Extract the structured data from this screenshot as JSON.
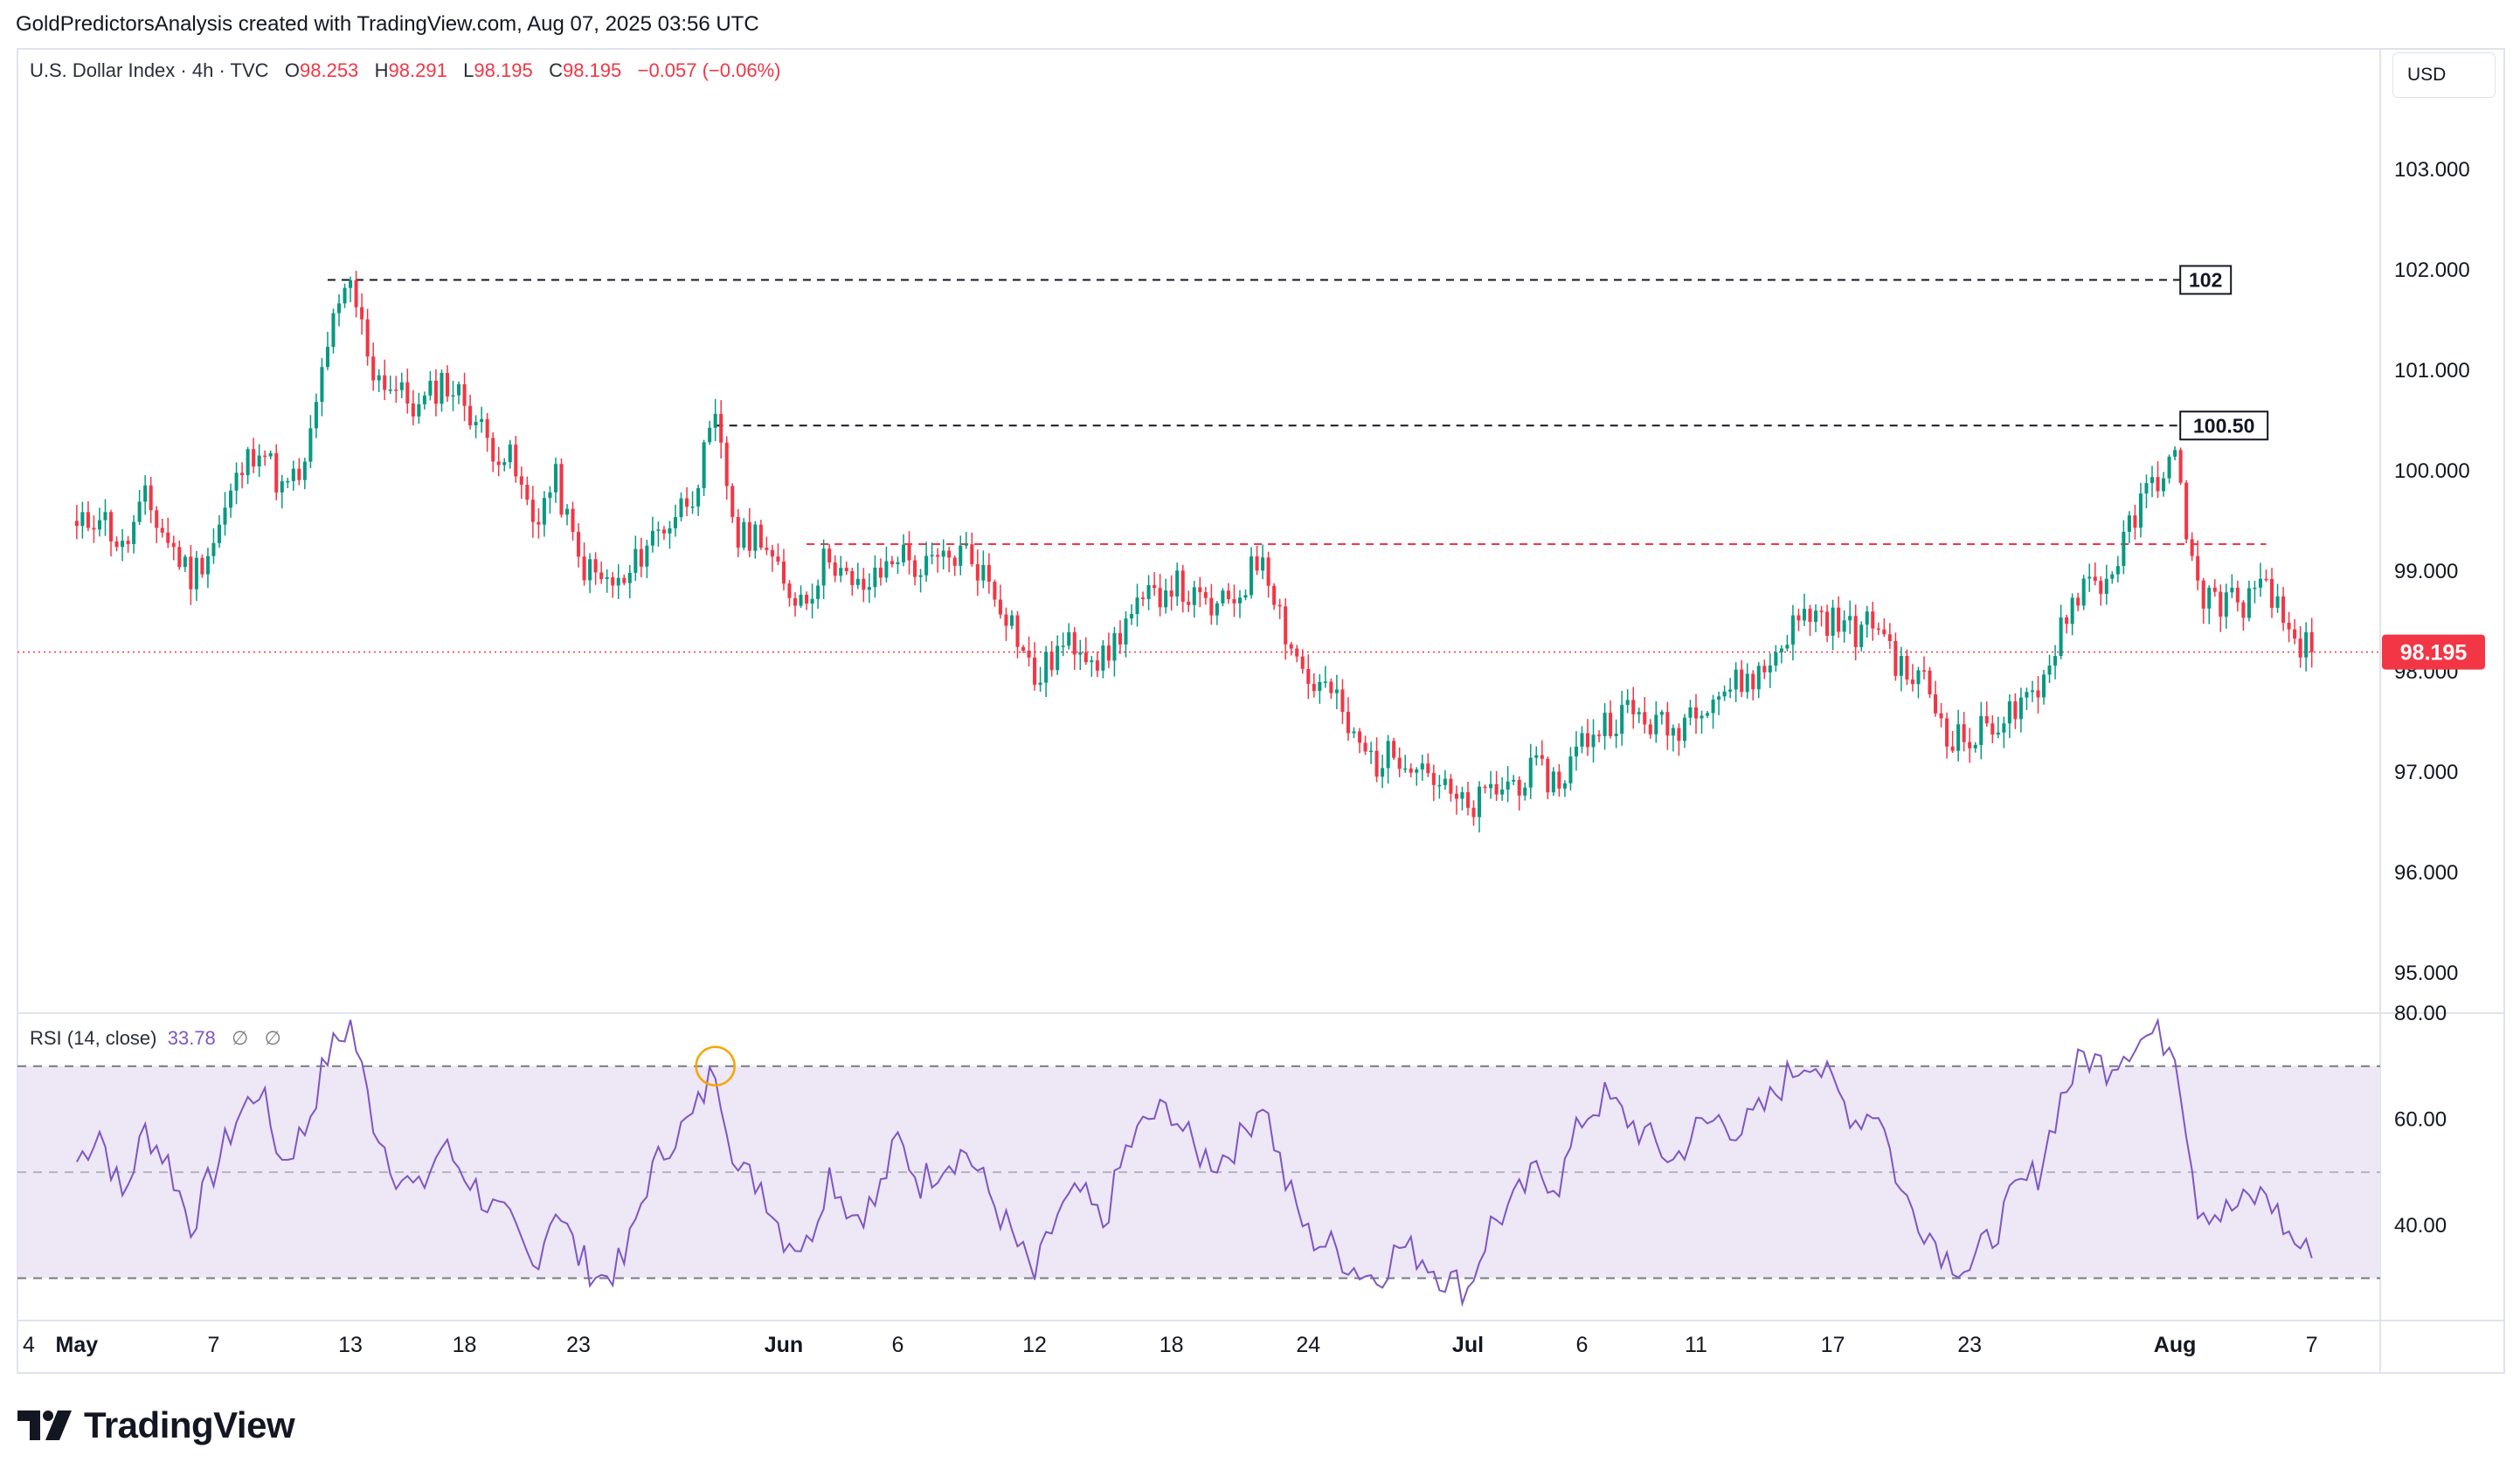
{
  "attribution": "GoldPredictorsAnalysis created with TradingView.com, Aug 07, 2025 03:56 UTC",
  "legend": {
    "symbol": "U.S. Dollar Index",
    "interval": "4h",
    "source": "TVC",
    "open_label": "O",
    "open": "98.253",
    "high_label": "H",
    "high": "98.291",
    "low_label": "L",
    "low": "98.195",
    "close_label": "C",
    "close": "98.195",
    "change": "−0.057 (−0.06%)"
  },
  "rsi_legend": {
    "label": "RSI (14, close)",
    "value": "33.78",
    "na1": "∅",
    "na2": "∅"
  },
  "currency_button": "USD",
  "brand": "TradingView",
  "colors": {
    "up": "#089981",
    "down": "#f23645",
    "rsi_line": "#7e57c2",
    "rsi_band": "#ede7f6",
    "price_line": "#f23645",
    "level_line": "#131722"
  },
  "chart_data": [
    {
      "type": "candlestick",
      "title": "U.S. Dollar Index · 4h · TVC",
      "y_axis_ticks": [
        "103.000",
        "102.000",
        "101.000",
        "100.000",
        "99.000",
        "98.000",
        "97.000",
        "96.000",
        "95.000"
      ],
      "ylim": [
        94.6,
        104.2
      ],
      "x_axis_ticks": [
        "4",
        "May",
        "7",
        "13",
        "18",
        "23",
        "Jun",
        "6",
        "12",
        "18",
        "24",
        "Jul",
        "6",
        "11",
        "17",
        "23",
        "Aug",
        "7"
      ],
      "last_price": "98.195",
      "annotations": [
        {
          "label": "102",
          "value": 101.9,
          "style": "dashed",
          "color": "#131722",
          "from": "May 12",
          "to": "Aug 2"
        },
        {
          "label": "100.50",
          "value": 100.45,
          "style": "dashed",
          "color": "#131722",
          "from": "May 29",
          "to": "Aug 2"
        },
        {
          "label": "",
          "value": 99.27,
          "style": "dashed",
          "color": "#f23645",
          "from": "Jun 2",
          "to": "Aug 5"
        }
      ],
      "price_path": [
        [
          "May 1",
          99.4
        ],
        [
          "May 2",
          99.6
        ],
        [
          "May 3",
          99.2
        ],
        [
          "May 4",
          99.7
        ],
        [
          "May 5",
          99.3
        ],
        [
          "May 6",
          98.95
        ],
        [
          "May 7",
          99.3
        ],
        [
          "May 8",
          99.9
        ],
        [
          "May 9",
          100.3
        ],
        [
          "May 10",
          99.8
        ],
        [
          "May 11",
          100.0
        ],
        [
          "May 12",
          101.3
        ],
        [
          "May 13",
          101.85
        ],
        [
          "May 14",
          101.0
        ],
        [
          "May 15",
          100.8
        ],
        [
          "May 16",
          100.6
        ],
        [
          "May 17",
          100.9
        ],
        [
          "May 18",
          100.7
        ],
        [
          "May 19",
          100.3
        ],
        [
          "May 20",
          100.1
        ],
        [
          "May 21",
          99.5
        ],
        [
          "May 22",
          99.9
        ],
        [
          "May 23",
          99.1
        ],
        [
          "May 24",
          98.9
        ],
        [
          "May 25",
          98.85
        ],
        [
          "May 26",
          99.3
        ],
        [
          "May 27",
          99.5
        ],
        [
          "May 28",
          99.8
        ],
        [
          "May 29",
          100.45
        ],
        [
          "May 30",
          99.3
        ],
        [
          "May 31",
          99.4
        ],
        [
          "Jun 1",
          98.8
        ],
        [
          "Jun 2",
          98.75
        ],
        [
          "Jun 3",
          99.2
        ],
        [
          "Jun 4",
          98.8
        ],
        [
          "Jun 5",
          98.9
        ],
        [
          "Jun 6",
          99.2
        ],
        [
          "Jun 7",
          99.0
        ],
        [
          "Jun 8",
          99.1
        ],
        [
          "Jun 9",
          99.2
        ],
        [
          "Jun 10",
          98.9
        ],
        [
          "Jun 11",
          98.5
        ],
        [
          "Jun 12",
          97.9
        ],
        [
          "Jun 13",
          98.2
        ],
        [
          "Jun 14",
          98.3
        ],
        [
          "Jun 15",
          98.1
        ],
        [
          "Jun 16",
          98.5
        ],
        [
          "Jun 17",
          98.7
        ],
        [
          "Jun 18",
          98.9
        ],
        [
          "Jun 19",
          98.7
        ],
        [
          "Jun 20",
          98.6
        ],
        [
          "Jun 21",
          98.8
        ],
        [
          "Jun 22",
          99.2
        ],
        [
          "Jun 23",
          98.4
        ],
        [
          "Jun 24",
          97.9
        ],
        [
          "Jun 25",
          97.8
        ],
        [
          "Jun 26",
          97.3
        ],
        [
          "Jun 27",
          97.1
        ],
        [
          "Jun 28",
          97.2
        ],
        [
          "Jun 29",
          97.1
        ],
        [
          "Jun 30",
          96.8
        ],
        [
          "Jul 1",
          96.6
        ],
        [
          "Jul 2",
          96.8
        ],
        [
          "Jul 3",
          96.9
        ],
        [
          "Jul 4",
          97.0
        ],
        [
          "Jul 5",
          96.9
        ],
        [
          "Jul 6",
          97.3
        ],
        [
          "Jul 7",
          97.5
        ],
        [
          "Jul 8",
          97.6
        ],
        [
          "Jul 9",
          97.5
        ],
        [
          "Jul 10",
          97.4
        ],
        [
          "Jul 11",
          97.7
        ],
        [
          "Jul 12",
          97.8
        ],
        [
          "Jul 13",
          97.9
        ],
        [
          "Jul 14",
          98.0
        ],
        [
          "Jul 15",
          98.4
        ],
        [
          "Jul 16",
          98.6
        ],
        [
          "Jul 17",
          98.5
        ],
        [
          "Jul 18",
          98.4
        ],
        [
          "Jul 19",
          98.5
        ],
        [
          "Jul 20",
          98.0
        ],
        [
          "Jul 21",
          97.9
        ],
        [
          "Jul 22",
          97.4
        ],
        [
          "Jul 23",
          97.3
        ],
        [
          "Jul 24",
          97.5
        ],
        [
          "Jul 25",
          97.6
        ],
        [
          "Jul 26",
          97.7
        ],
        [
          "Jul 27",
          98.5
        ],
        [
          "Jul 28",
          98.9
        ],
        [
          "Jul 29",
          98.9
        ],
        [
          "Jul 30",
          99.4
        ],
        [
          "Jul 31",
          99.9
        ],
        [
          "Aug 1",
          100.1
        ],
        [
          "Aug 2",
          98.8
        ],
        [
          "Aug 3",
          98.7
        ],
        [
          "Aug 4",
          98.7
        ],
        [
          "Aug 5",
          98.8
        ],
        [
          "Aug 6",
          98.4
        ],
        [
          "Aug 7",
          98.2
        ]
      ]
    },
    {
      "type": "line",
      "title": "RSI (14, close)",
      "y_axis_ticks": [
        "80.00",
        "60.00",
        "40.00"
      ],
      "ylim": [
        22,
        80
      ],
      "bands": {
        "upper": 70,
        "middle": 50,
        "lower": 30
      },
      "series": [
        {
          "name": "RSI",
          "values": [
            [
              "May 1",
              52
            ],
            [
              "May 2",
              58
            ],
            [
              "May 3",
              45
            ],
            [
              "May 4",
              58
            ],
            [
              "May 5",
              52
            ],
            [
              "May 6",
              40
            ],
            [
              "May 7",
              50
            ],
            [
              "May 8",
              60
            ],
            [
              "May 9",
              66
            ],
            [
              "May 10",
              52
            ],
            [
              "May 11",
              58
            ],
            [
              "May 12",
              72
            ],
            [
              "May 13",
              78
            ],
            [
              "May 14",
              60
            ],
            [
              "May 15",
              50
            ],
            [
              "May 16",
              46
            ],
            [
              "May 17",
              55
            ],
            [
              "May 18",
              50
            ],
            [
              "May 19",
              44
            ],
            [
              "May 20",
              40
            ],
            [
              "May 21",
              32
            ],
            [
              "May 22",
              44
            ],
            [
              "May 23",
              34
            ],
            [
              "May 24",
              30
            ],
            [
              "May 25",
              33
            ],
            [
              "May 26",
              48
            ],
            [
              "May 27",
              56
            ],
            [
              "May 28",
              60
            ],
            [
              "May 29",
              70
            ],
            [
              "May 30",
              50
            ],
            [
              "May 31",
              48
            ],
            [
              "Jun 1",
              38
            ],
            [
              "Jun 2",
              36
            ],
            [
              "Jun 3",
              50
            ],
            [
              "Jun 4",
              42
            ],
            [
              "Jun 5",
              44
            ],
            [
              "Jun 6",
              56
            ],
            [
              "Jun 7",
              48
            ],
            [
              "Jun 8",
              52
            ],
            [
              "Jun 9",
              54
            ],
            [
              "Jun 10",
              46
            ],
            [
              "Jun 11",
              38
            ],
            [
              "Jun 12",
              30
            ],
            [
              "Jun 13",
              42
            ],
            [
              "Jun 14",
              46
            ],
            [
              "Jun 15",
              40
            ],
            [
              "Jun 16",
              54
            ],
            [
              "Jun 17",
              60
            ],
            [
              "Jun 18",
              62
            ],
            [
              "Jun 19",
              54
            ],
            [
              "Jun 20",
              52
            ],
            [
              "Jun 21",
              56
            ],
            [
              "Jun 22",
              64
            ],
            [
              "Jun 23",
              48
            ],
            [
              "Jun 24",
              38
            ],
            [
              "Jun 25",
              36
            ],
            [
              "Jun 26",
              32
            ],
            [
              "Jun 27",
              30
            ],
            [
              "Jun 28",
              36
            ],
            [
              "Jun 29",
              34
            ],
            [
              "Jun 30",
              30
            ],
            [
              "Jul 1",
              28
            ],
            [
              "Jul 2",
              40
            ],
            [
              "Jul 3",
              44
            ],
            [
              "Jul 4",
              50
            ],
            [
              "Jul 5",
              48
            ],
            [
              "Jul 6",
              60
            ],
            [
              "Jul 7",
              64
            ],
            [
              "Jul 8",
              60
            ],
            [
              "Jul 9",
              56
            ],
            [
              "Jul 10",
              52
            ],
            [
              "Jul 11",
              58
            ],
            [
              "Jul 12",
              60
            ],
            [
              "Jul 13",
              58
            ],
            [
              "Jul 14",
              62
            ],
            [
              "Jul 15",
              68
            ],
            [
              "Jul 16",
              72
            ],
            [
              "Jul 17",
              66
            ],
            [
              "Jul 18",
              60
            ],
            [
              "Jul 19",
              62
            ],
            [
              "Jul 20",
              46
            ],
            [
              "Jul 21",
              40
            ],
            [
              "Jul 22",
              34
            ],
            [
              "Jul 23",
              32
            ],
            [
              "Jul 24",
              38
            ],
            [
              "Jul 25",
              46
            ],
            [
              "Jul 26",
              50
            ],
            [
              "Jul 27",
              64
            ],
            [
              "Jul 28",
              72
            ],
            [
              "Jul 29",
              70
            ],
            [
              "Jul 30",
              74
            ],
            [
              "Jul 31",
              76
            ],
            [
              "Aug 1",
              74
            ],
            [
              "Aug 2",
              44
            ],
            [
              "Aug 3",
              42
            ],
            [
              "Aug 4",
              44
            ],
            [
              "Aug 5",
              46
            ],
            [
              "Aug 6",
              38
            ],
            [
              "Aug 7",
              33.78
            ]
          ]
        }
      ],
      "highlight": {
        "at": "May 29",
        "value": 70,
        "shape": "circle",
        "color": "#f7a600"
      }
    }
  ]
}
